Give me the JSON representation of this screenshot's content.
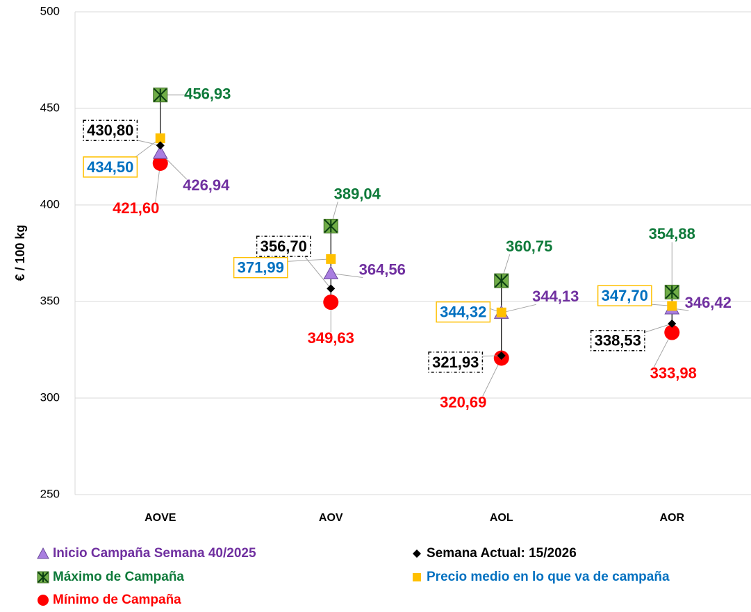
{
  "chart_data": {
    "type": "high-low",
    "y_label": "€ / 100 kg",
    "categories": [
      "AOVE",
      "AOV",
      "AOL",
      "AOR"
    ],
    "ylim": [
      250,
      500
    ],
    "yticks": [
      250,
      300,
      350,
      400,
      450,
      500
    ],
    "grid": true,
    "series": [
      {
        "name": "Inicio Campaña Semana 40/2025",
        "color": "#a97ee0",
        "label_color": "#7030a0",
        "marker": "triangle",
        "values": [
          426.94,
          364.56,
          344.13,
          346.42
        ],
        "value_labels": [
          "426,94",
          "364,56",
          "344,13",
          "346,42"
        ]
      },
      {
        "name": "Semana Actual: 15/2026",
        "color": "#000000",
        "label_color": "#000000",
        "marker": "diamond",
        "values": [
          430.8,
          356.7,
          321.93,
          338.53
        ],
        "value_labels": [
          "430,80",
          "356,70",
          "321,93",
          "338,53"
        ]
      },
      {
        "name": "Máximo de Campaña",
        "color": "#70ad47",
        "label_color": "#0e7a3a",
        "marker": "xsquare",
        "values": [
          456.93,
          389.04,
          360.75,
          354.88
        ],
        "value_labels": [
          "456,93",
          "389,04",
          "360,75",
          "354,88"
        ]
      },
      {
        "name": "Precio medio en lo que va de campaña",
        "color": "#ffc000",
        "label_color": "#0070c0",
        "marker": "square",
        "values": [
          434.5,
          371.99,
          344.32,
          347.7
        ],
        "value_labels": [
          "434,50",
          "371,99",
          "344,32",
          "347,70"
        ]
      },
      {
        "name": "Mínimo de Campaña",
        "color": "#ff0000",
        "label_color": "#ff0000",
        "marker": "circle",
        "values": [
          421.6,
          349.63,
          320.69,
          333.98
        ],
        "value_labels": [
          "421,60",
          "349,63",
          "320,69",
          "333,98"
        ]
      }
    ]
  }
}
